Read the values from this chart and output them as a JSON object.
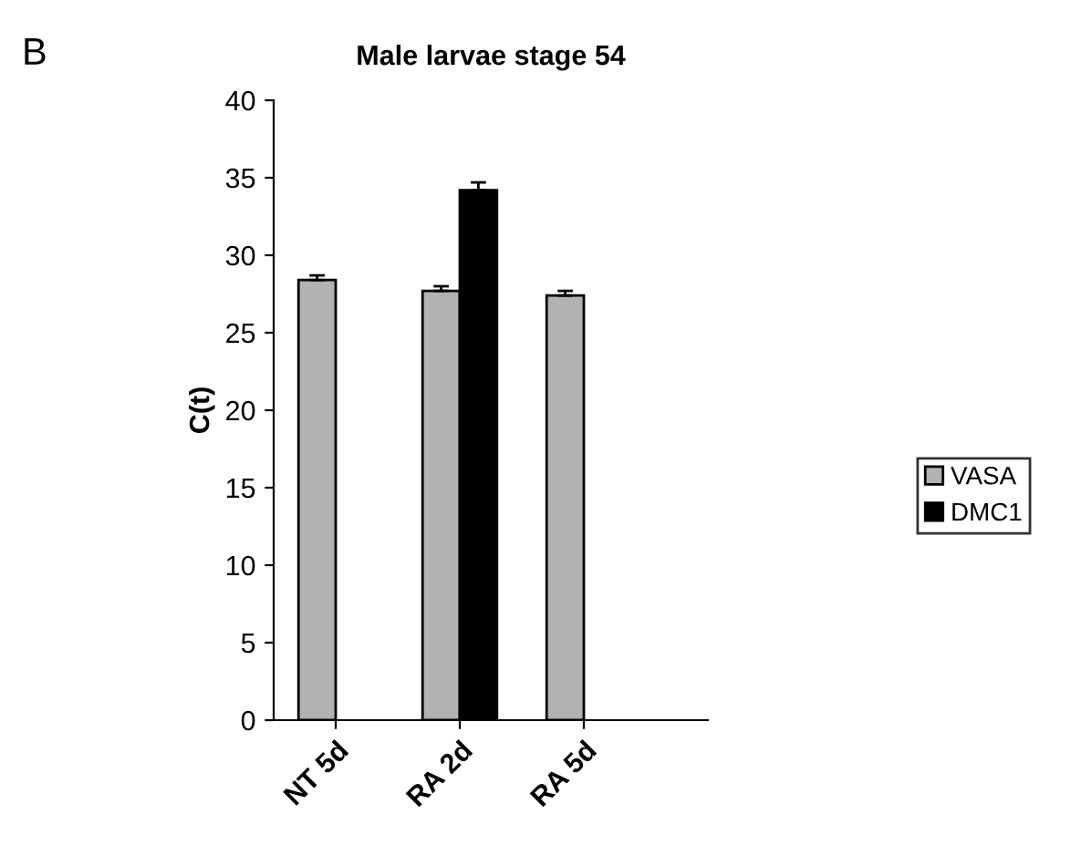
{
  "chart_data": {
    "type": "bar",
    "title": "Male larvae stage 54",
    "ylabel": "C(t)",
    "annotations": [
      "B"
    ],
    "categories": [
      "NT 5d",
      "RA 2d",
      "RA 5d"
    ],
    "series": [
      {
        "name": "VASA",
        "color": "#b2b2b2",
        "values": [
          28.4,
          27.7,
          27.4
        ],
        "errors": [
          0.3,
          0.3,
          0.3
        ]
      },
      {
        "name": "DMC1",
        "color": "#000000",
        "values": [
          null,
          34.2,
          null
        ],
        "errors": [
          null,
          0.5,
          null
        ]
      }
    ],
    "ylim": [
      0,
      40
    ],
    "yticks": [
      0,
      5,
      10,
      15,
      20,
      25,
      30,
      35,
      40
    ],
    "grid": false,
    "legend": "right"
  }
}
